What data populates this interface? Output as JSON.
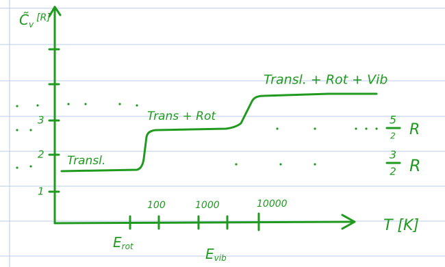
{
  "axes": {
    "y_label": "C̃",
    "y_label_sub": "v",
    "y_unit": "[R]",
    "y_ticks": [
      "1",
      "2",
      "3"
    ],
    "x_ticks": [
      "100",
      "1000",
      "10000"
    ],
    "x_label": "T [K]"
  },
  "energies": [
    {
      "label": "E",
      "sub": "rot"
    },
    {
      "label": "E",
      "sub": "vib"
    }
  ],
  "regions": [
    "Transl.",
    "Trans + Rot",
    "Transl. + Rot + Vib"
  ],
  "levels": [
    {
      "numerator": "5",
      "denominator": "2",
      "unit": "R"
    },
    {
      "numerator": "3",
      "denominator": "2",
      "unit": "R"
    }
  ]
}
